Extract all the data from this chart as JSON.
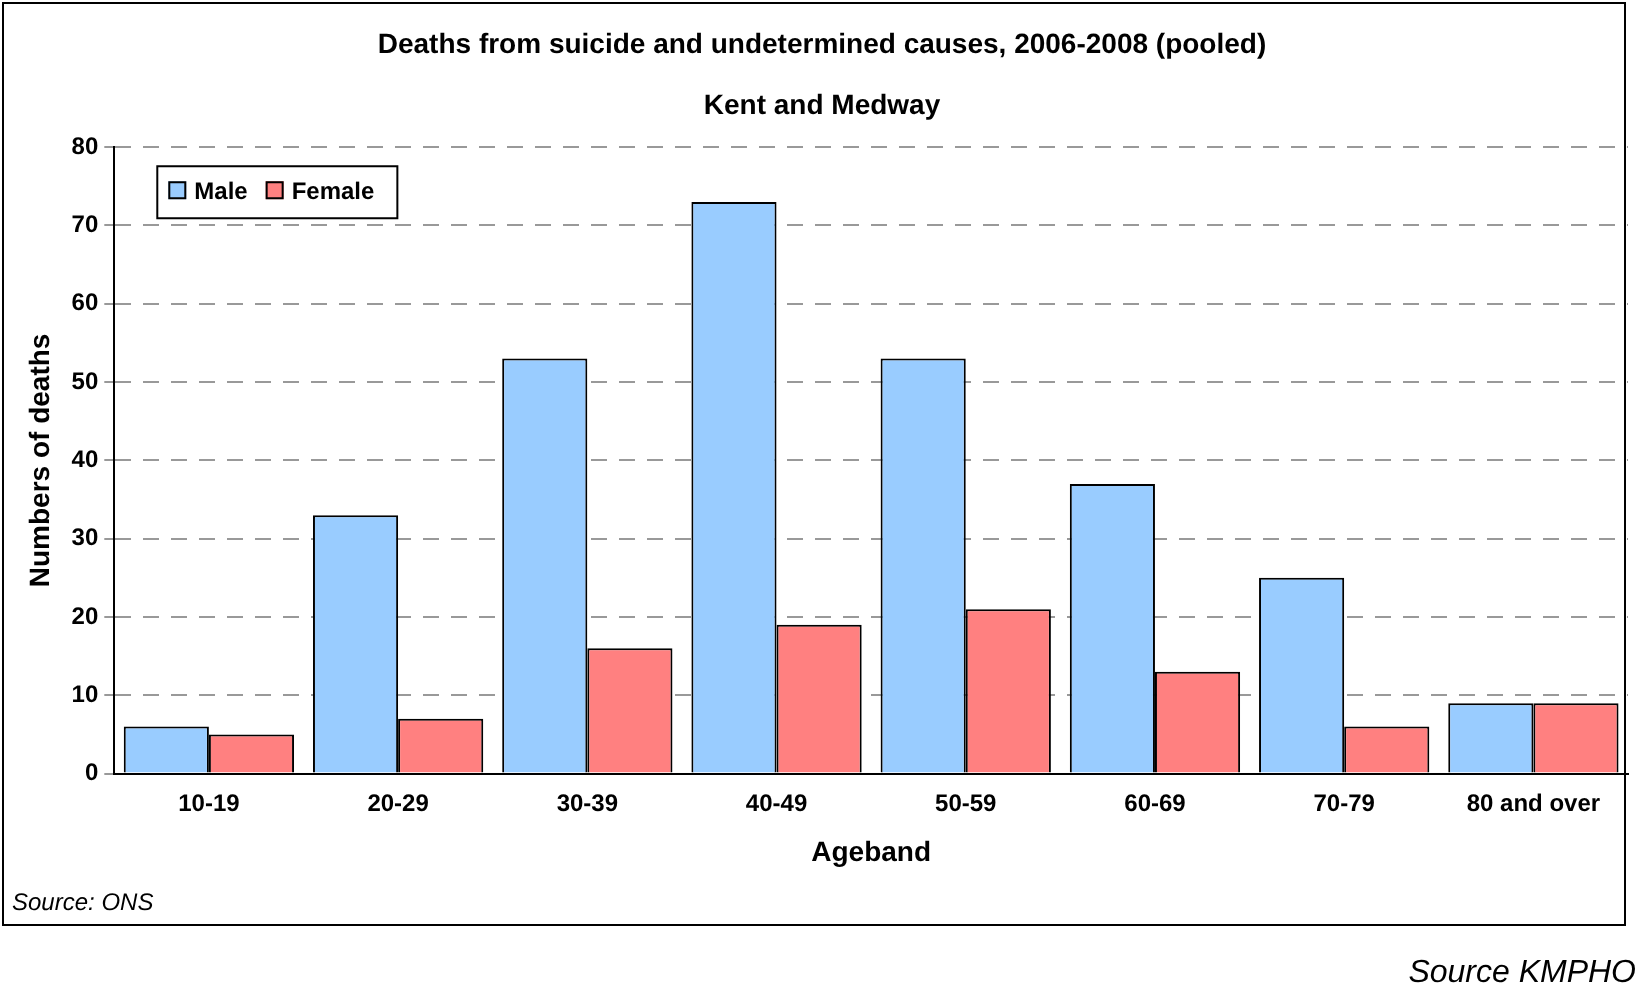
{
  "chart_data": {
    "type": "bar",
    "title": "Deaths from suicide and undetermined causes, 2006-2008 (pooled)",
    "subtitle": "Kent and Medway",
    "xlabel": "Ageband",
    "ylabel": "Numbers of deaths",
    "categories": [
      "10-19",
      "20-29",
      "30-39",
      "40-49",
      "50-59",
      "60-69",
      "70-79",
      "80 and over"
    ],
    "series": [
      {
        "name": "Male",
        "color": "#99ccff",
        "values": [
          6,
          33,
          53,
          73,
          53,
          37,
          25,
          9
        ]
      },
      {
        "name": "Female",
        "color": "#ff8080",
        "values": [
          5,
          7,
          16,
          19,
          21,
          13,
          6,
          9
        ]
      }
    ],
    "ylim": [
      0,
      80
    ],
    "yticks": [
      0,
      10,
      20,
      30,
      40,
      50,
      60,
      70,
      80
    ],
    "grid": "y",
    "legend": "top left",
    "annotations": [
      "Source: ONS",
      "Source KMPHO"
    ]
  }
}
